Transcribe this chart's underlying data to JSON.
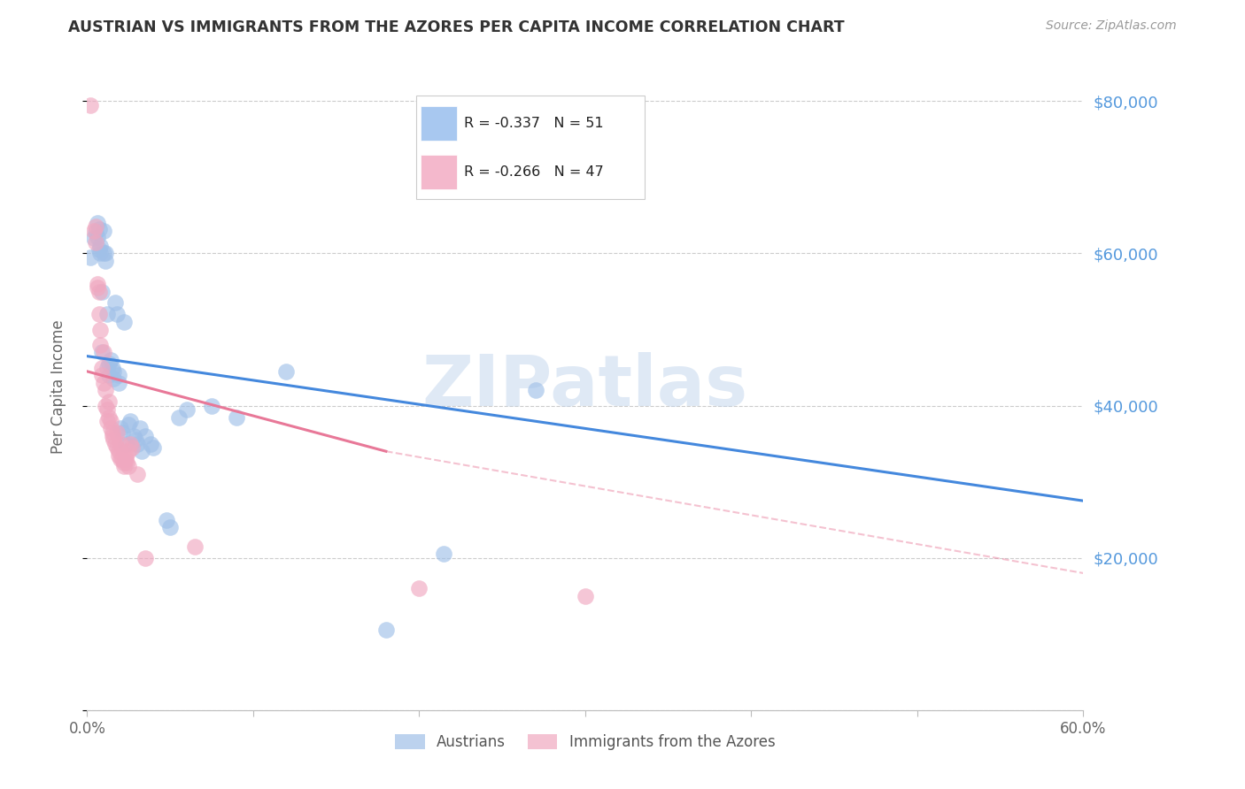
{
  "title": "AUSTRIAN VS IMMIGRANTS FROM THE AZORES PER CAPITA INCOME CORRELATION CHART",
  "source": "Source: ZipAtlas.com",
  "xlabel_ticks": [
    "0.0%",
    "",
    "",
    "",
    "",
    "",
    "60.0%"
  ],
  "ylabel_label": "Per Capita Income",
  "ylabel_ticks": [
    0,
    20000,
    40000,
    60000,
    80000
  ],
  "ylabel_tick_labels": [
    "",
    "$20,000",
    "$40,000",
    "$60,000",
    "$80,000"
  ],
  "xlim": [
    0.0,
    0.6
  ],
  "ylim": [
    0,
    85000
  ],
  "legend_entries": [
    {
      "label": "R = -0.337   N = 51",
      "color": "#a8c8f0"
    },
    {
      "label": "R = -0.266   N = 47",
      "color": "#f4b8cc"
    }
  ],
  "legend_labels_bottom": [
    "Austrians",
    "Immigrants from the Azores"
  ],
  "watermark": "ZIPatlas",
  "blue_color": "#a0c0e8",
  "pink_color": "#f0a8c0",
  "blue_line_color": "#4488dd",
  "pink_line_color": "#e87898",
  "blue_scatter": [
    [
      0.002,
      59500
    ],
    [
      0.004,
      62000
    ],
    [
      0.005,
      62800
    ],
    [
      0.006,
      62200
    ],
    [
      0.006,
      64000
    ],
    [
      0.007,
      60500
    ],
    [
      0.007,
      63200
    ],
    [
      0.008,
      61000
    ],
    [
      0.008,
      60000
    ],
    [
      0.009,
      47000
    ],
    [
      0.009,
      55000
    ],
    [
      0.01,
      60000
    ],
    [
      0.01,
      63000
    ],
    [
      0.011,
      60000
    ],
    [
      0.011,
      59000
    ],
    [
      0.012,
      45000
    ],
    [
      0.012,
      52000
    ],
    [
      0.013,
      45500
    ],
    [
      0.013,
      44000
    ],
    [
      0.014,
      46000
    ],
    [
      0.015,
      45000
    ],
    [
      0.016,
      44500
    ],
    [
      0.016,
      43500
    ],
    [
      0.017,
      53500
    ],
    [
      0.018,
      52000
    ],
    [
      0.019,
      43000
    ],
    [
      0.019,
      44000
    ],
    [
      0.02,
      37000
    ],
    [
      0.021,
      36500
    ],
    [
      0.022,
      51000
    ],
    [
      0.023,
      35000
    ],
    [
      0.025,
      37500
    ],
    [
      0.026,
      38000
    ],
    [
      0.028,
      36000
    ],
    [
      0.029,
      35500
    ],
    [
      0.03,
      35000
    ],
    [
      0.032,
      37000
    ],
    [
      0.033,
      34000
    ],
    [
      0.035,
      36000
    ],
    [
      0.038,
      35000
    ],
    [
      0.04,
      34500
    ],
    [
      0.048,
      25000
    ],
    [
      0.05,
      24000
    ],
    [
      0.055,
      38500
    ],
    [
      0.06,
      39500
    ],
    [
      0.075,
      40000
    ],
    [
      0.09,
      38500
    ],
    [
      0.12,
      44500
    ],
    [
      0.18,
      10500
    ],
    [
      0.215,
      20500
    ],
    [
      0.27,
      42000
    ]
  ],
  "pink_scatter": [
    [
      0.002,
      79500
    ],
    [
      0.004,
      63000
    ],
    [
      0.005,
      61500
    ],
    [
      0.005,
      63500
    ],
    [
      0.006,
      56000
    ],
    [
      0.006,
      55500
    ],
    [
      0.007,
      55000
    ],
    [
      0.007,
      52000
    ],
    [
      0.008,
      50000
    ],
    [
      0.008,
      48000
    ],
    [
      0.009,
      45000
    ],
    [
      0.009,
      44000
    ],
    [
      0.01,
      47000
    ],
    [
      0.01,
      43000
    ],
    [
      0.011,
      42000
    ],
    [
      0.011,
      40000
    ],
    [
      0.012,
      39500
    ],
    [
      0.012,
      38000
    ],
    [
      0.013,
      40500
    ],
    [
      0.013,
      38500
    ],
    [
      0.014,
      38000
    ],
    [
      0.014,
      37000
    ],
    [
      0.015,
      36500
    ],
    [
      0.015,
      36000
    ],
    [
      0.016,
      35500
    ],
    [
      0.017,
      35000
    ],
    [
      0.018,
      36500
    ],
    [
      0.018,
      34500
    ],
    [
      0.019,
      34000
    ],
    [
      0.019,
      33500
    ],
    [
      0.02,
      33000
    ],
    [
      0.02,
      35000
    ],
    [
      0.021,
      33000
    ],
    [
      0.022,
      32500
    ],
    [
      0.022,
      32000
    ],
    [
      0.023,
      33500
    ],
    [
      0.023,
      33000
    ],
    [
      0.024,
      32500
    ],
    [
      0.025,
      34000
    ],
    [
      0.025,
      32000
    ],
    [
      0.026,
      35000
    ],
    [
      0.027,
      34500
    ],
    [
      0.03,
      31000
    ],
    [
      0.035,
      20000
    ],
    [
      0.065,
      21500
    ],
    [
      0.2,
      16000
    ],
    [
      0.3,
      15000
    ]
  ],
  "blue_line": {
    "x0": 0.0,
    "y0": 46500,
    "x1": 0.6,
    "y1": 27500
  },
  "pink_line_solid": {
    "x0": 0.0,
    "y0": 44500,
    "x1": 0.18,
    "y1": 34000
  },
  "pink_line_dashed": {
    "x0": 0.18,
    "y0": 34000,
    "x1": 0.6,
    "y1": 18000
  }
}
